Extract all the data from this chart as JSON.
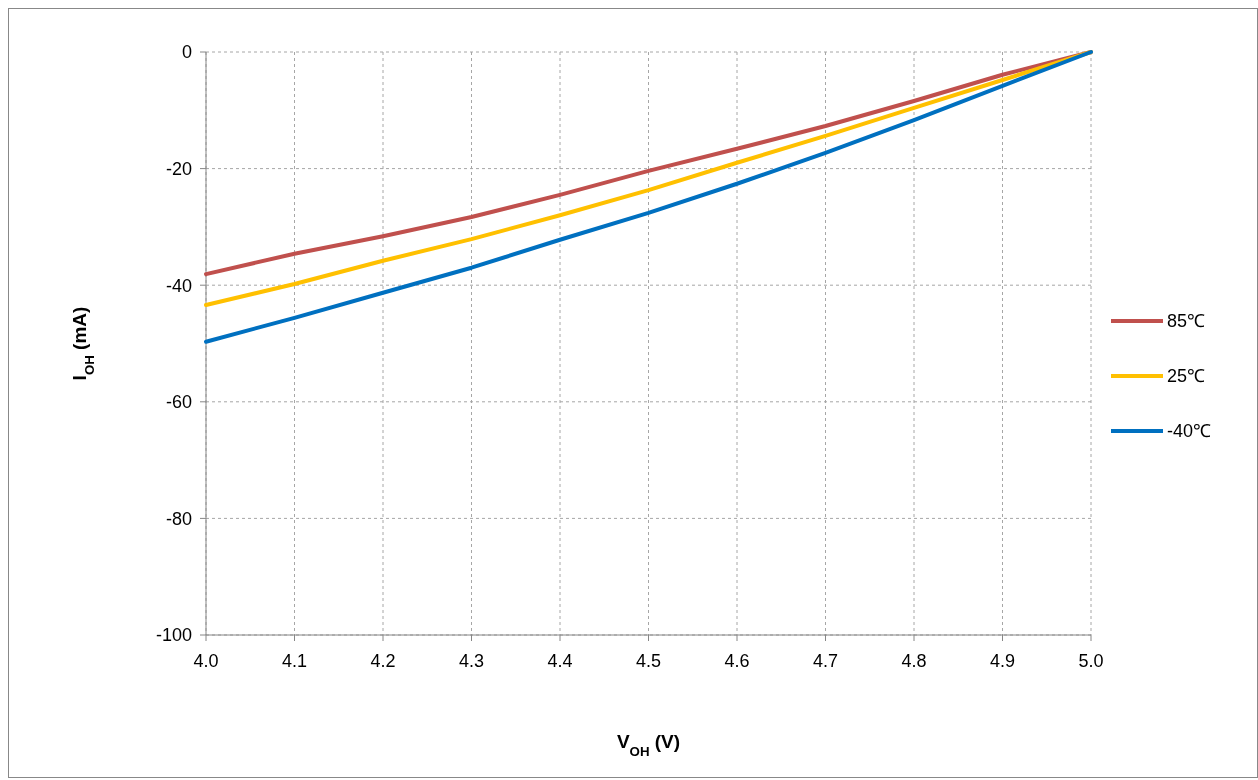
{
  "chart_data": {
    "type": "line",
    "xlabel": "V$_{OH}$ (V)",
    "ylabel": "I$_{OH}$ (mA)",
    "x": [
      4.0,
      4.1,
      4.2,
      4.3,
      4.4,
      4.5,
      4.6,
      4.7,
      4.8,
      4.9,
      5.0
    ],
    "series": [
      {
        "name": "85℃",
        "color": "#c0504d",
        "values": [
          -38.1,
          -34.6,
          -31.6,
          -28.3,
          -24.5,
          -20.4,
          -16.6,
          -12.7,
          -8.4,
          -3.9,
          0
        ]
      },
      {
        "name": "25℃",
        "color": "#ffc000",
        "values": [
          -43.4,
          -39.8,
          -35.8,
          -32.1,
          -28,
          -23.7,
          -19,
          -14.4,
          -9.6,
          -4.8,
          0
        ]
      },
      {
        "name": "-40℃",
        "color": "#0070c0",
        "values": [
          -49.7,
          -45.6,
          -41.3,
          -37,
          -32.2,
          -27.6,
          -22.6,
          -17.3,
          -11.7,
          -5.8,
          0
        ]
      }
    ],
    "xlim": [
      4.0,
      5.0
    ],
    "xticks": [
      {
        "value": 4.0,
        "label": "4.0"
      },
      4.1,
      4.2,
      4.3,
      4.4,
      4.5,
      4.6,
      4.7,
      4.8,
      4.9,
      {
        "value": 5.0,
        "label": "5.0"
      }
    ],
    "ylim": [
      -100,
      0
    ],
    "yticks": [
      -100,
      -80,
      -60,
      -40,
      -20,
      0
    ],
    "grid": true,
    "legend": "right",
    "marker": "none",
    "line_style": "solid"
  }
}
